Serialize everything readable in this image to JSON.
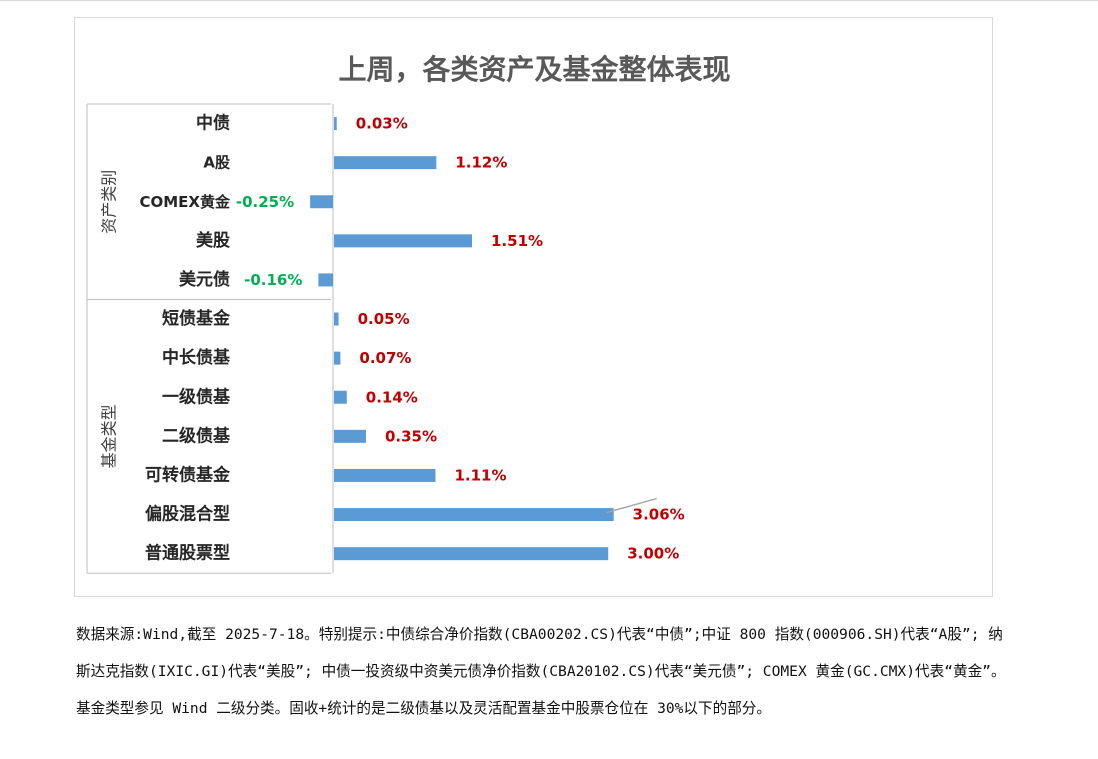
{
  "chart_data": {
    "type": "bar",
    "orientation": "horizontal",
    "title": "上周，各类资产及基金整体表现",
    "groups": [
      {
        "name": "资产类别",
        "categories": [
          "中债",
          "A股",
          "COMEX黄金",
          "美股",
          "美元债"
        ]
      },
      {
        "name": "基金类型",
        "categories": [
          "短债基金",
          "中长债基",
          "一级债基",
          "二级债基",
          "可转债基金",
          "偏股混合型",
          "普通股票型"
        ]
      }
    ],
    "categories": [
      "中债",
      "A股",
      "COMEX黄金",
      "美股",
      "美元债",
      "短债基金",
      "中长债基",
      "一级债基",
      "二级债基",
      "可转债基金",
      "偏股混合型",
      "普通股票型"
    ],
    "values": [
      0.03,
      1.12,
      -0.25,
      1.51,
      -0.16,
      0.05,
      0.07,
      0.14,
      0.35,
      1.11,
      3.06,
      3.0
    ],
    "value_labels": [
      "0.03%",
      "1.12%",
      "-0.25%",
      "1.51%",
      "-0.16%",
      "0.05%",
      "0.07%",
      "0.14%",
      "0.35%",
      "1.11%",
      "3.06%",
      "3.00%"
    ],
    "unit": "%",
    "colors": {
      "bar": "#5b9bd5",
      "positive_label": "#c00000",
      "negative_label": "#00b050",
      "axis": "#bfbfbf"
    },
    "grid": false,
    "legend": "none"
  },
  "note": "数据来源:Wind,截至 2025-7-18。特别提示:中债综合净价指数(CBA00202.CS)代表“中债”;中证 800 指数(000906.SH)代表“A股”; 纳斯达克指数(IXIC.GI)代表“美股”; 中债一投资级中资美元债净价指数(CBA20102.CS)代表“美元债”; COMEX 黄金(GC.CMX)代表“黄金”。基金类型参见 Wind 二级分类。固收+统计的是二级债基以及灵活配置基金中股票仓位在 30%以下的部分。"
}
